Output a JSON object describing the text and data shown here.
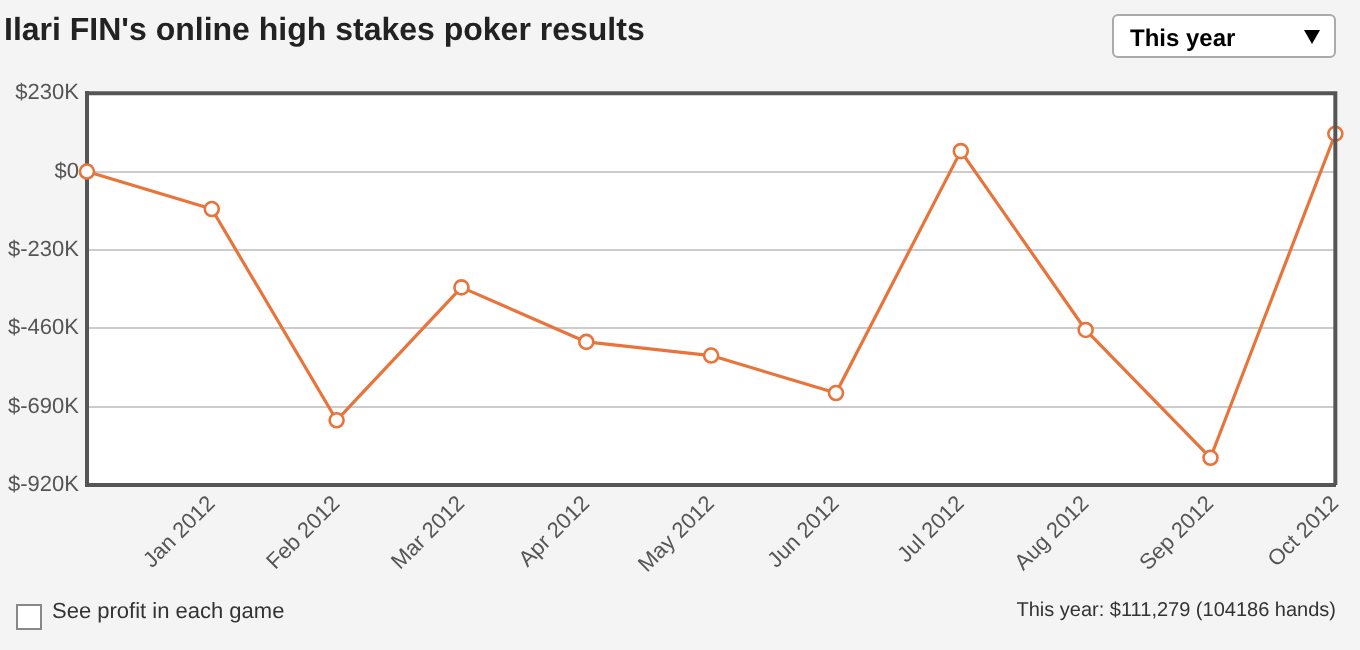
{
  "chart_data": {
    "type": "line",
    "title": "Ilari FIN's online high stakes poker results",
    "categories": [
      null,
      "Jan 2012",
      "Feb 2012",
      "Mar 2012",
      "Apr 2012",
      "May 2012",
      "Jun 2012",
      "Jul 2012",
      "Aug 2012",
      "Sep 2012",
      "Oct 2012"
    ],
    "series": [
      {
        "color": "#e8743b",
        "values": [
          0,
          -110,
          -730,
          -340,
          -500,
          -540,
          -650,
          60,
          -465,
          -840,
          111
        ]
      }
    ],
    "ylim": [
      -920,
      230
    ],
    "yticks": [
      {
        "value": 230,
        "label": "$230K"
      },
      {
        "value": 0,
        "label": "$0"
      },
      {
        "value": -230,
        "label": "$-230K"
      },
      {
        "value": -460,
        "label": "$-460K"
      },
      {
        "value": -690,
        "label": "$-690K"
      },
      {
        "value": -920,
        "label": "$-920K"
      }
    ],
    "grid": "y",
    "legend": false,
    "marker": "circle",
    "line_style": "solid",
    "annotations": [
      "This year",
      "See profit in each game",
      "This year: $111,279 (104186 hands)"
    ]
  }
}
